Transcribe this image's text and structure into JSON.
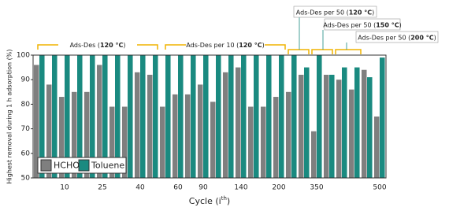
{
  "chart_data": {
    "type": "bar",
    "ylabel": "Highest removal during 1 h adsorption (%)",
    "xlabel": {
      "text": "Cycle (i",
      "sup": "th",
      "end": ")"
    },
    "categories": [
      null,
      null,
      "10",
      null,
      null,
      "25",
      null,
      null,
      "40",
      null,
      null,
      "60",
      null,
      "90",
      null,
      null,
      "140",
      null,
      null,
      "200",
      null,
      null,
      "350",
      null,
      null,
      null,
      null,
      "500"
    ],
    "series": [
      {
        "name": "HCHO",
        "color": "#7f7f7f",
        "values": [
          96,
          88,
          83,
          85,
          85,
          96,
          79,
          79,
          93,
          92,
          79,
          84,
          84,
          88,
          81,
          93,
          95,
          79,
          79,
          83,
          85,
          92,
          69,
          92,
          90,
          86,
          94,
          75
        ]
      },
      {
        "name": "Toluene",
        "color": "#1a8a80",
        "values": [
          100,
          100,
          100,
          100,
          100,
          100,
          100,
          100,
          100,
          100,
          100,
          100,
          100,
          100,
          100,
          100,
          100,
          100,
          100,
          100,
          100,
          95,
          100,
          92,
          95,
          95,
          91,
          99
        ]
      }
    ],
    "ylim": [
      50,
      100
    ],
    "yticks": [
      50,
      60,
      70,
      80,
      90,
      100
    ],
    "legend": "lower left",
    "annotations": [
      {
        "text": "Ads-Des (",
        "bold": "120 °C",
        "end": ")"
      },
      {
        "text": "Ads-Des per 10 (",
        "bold": "120 °C",
        "end": ")"
      },
      {
        "text": "Ads-Des per 50 (",
        "bold": "120 °C",
        "end": ")"
      },
      {
        "text": "Ads-Des per 50 (",
        "bold": "150 °C",
        "end": ")"
      },
      {
        "text": "Ads-Des per 50 (",
        "bold": "200 °C",
        "end": ")"
      }
    ]
  }
}
